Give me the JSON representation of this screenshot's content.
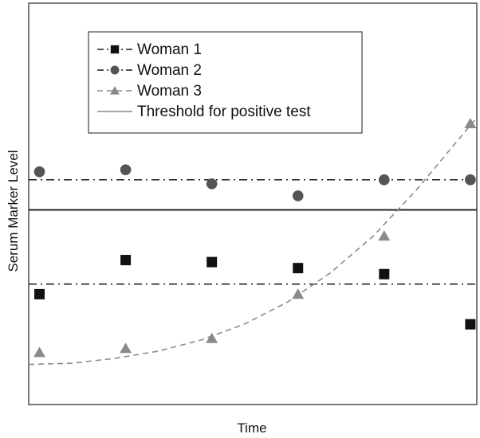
{
  "chart_data": {
    "type": "scatter",
    "xlabel": "Time",
    "ylabel": "Serum Marker Level",
    "xlim": [
      0,
      10.4
    ],
    "ylim": [
      0,
      10
    ],
    "grid": false,
    "legend_position": "top-left",
    "threshold": {
      "name": "Threshold for positive test",
      "value": 4.85,
      "color": "#1a1a1a"
    },
    "series": [
      {
        "name": "Woman 1",
        "marker": "square",
        "color": "#111111",
        "line_style": "dashdot",
        "reference_level": 3.0,
        "points": [
          [
            0.25,
            2.75
          ],
          [
            2.25,
            3.6
          ],
          [
            4.25,
            3.55
          ],
          [
            6.25,
            3.4
          ],
          [
            8.25,
            3.25
          ],
          [
            10.25,
            2.0
          ]
        ]
      },
      {
        "name": "Woman 2",
        "marker": "circle",
        "color": "#555555",
        "line_style": "dashdot",
        "reference_level": 5.6,
        "points": [
          [
            0.25,
            5.8
          ],
          [
            2.25,
            5.85
          ],
          [
            4.25,
            5.5
          ],
          [
            6.25,
            5.2
          ],
          [
            8.25,
            5.6
          ],
          [
            10.25,
            5.6
          ]
        ]
      },
      {
        "name": "Woman 3",
        "marker": "triangle",
        "color": "#8a8a8a",
        "line_style": "dashed",
        "points": [
          [
            0.25,
            1.3
          ],
          [
            2.25,
            1.4
          ],
          [
            4.25,
            1.65
          ],
          [
            6.25,
            2.75
          ],
          [
            8.25,
            4.2
          ],
          [
            10.25,
            7.0
          ]
        ],
        "trend": [
          [
            0,
            1.0
          ],
          [
            1,
            1.03
          ],
          [
            2,
            1.15
          ],
          [
            3,
            1.33
          ],
          [
            4,
            1.61
          ],
          [
            5,
            2.0
          ],
          [
            6,
            2.55
          ],
          [
            7,
            3.28
          ],
          [
            8,
            4.2
          ],
          [
            9,
            5.35
          ],
          [
            10.4,
            7.15
          ]
        ]
      }
    ]
  }
}
